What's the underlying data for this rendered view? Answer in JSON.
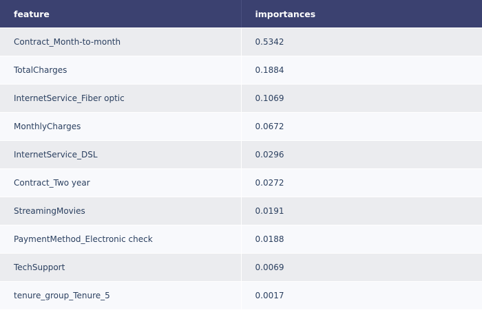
{
  "table": {
    "headers": [
      "feature",
      "importances"
    ],
    "rows": [
      [
        "Contract_Month-to-month",
        "0.5342"
      ],
      [
        "TotalCharges",
        "0.1884"
      ],
      [
        "InternetService_Fiber optic",
        "0.1069"
      ],
      [
        "MonthlyCharges",
        "0.0672"
      ],
      [
        "InternetService_DSL",
        "0.0296"
      ],
      [
        "Contract_Two year",
        "0.0272"
      ],
      [
        "StreamingMovies",
        "0.0191"
      ],
      [
        "PaymentMethod_Electronic check",
        "0.0188"
      ],
      [
        "TechSupport",
        "0.0069"
      ],
      [
        "tenure_group_Tenure_5",
        "0.0017"
      ]
    ]
  },
  "colors": {
    "header_bg": "#3b4170",
    "row_odd": "#ebecef",
    "row_even": "#f8f9fc",
    "text": "#2a3f5f"
  }
}
